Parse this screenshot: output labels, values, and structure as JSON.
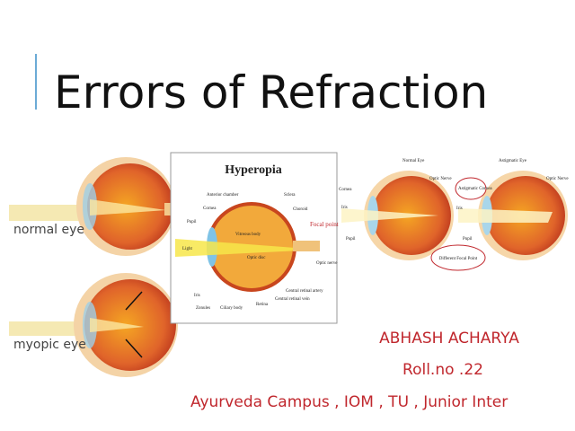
{
  "title": "Errors of Refraction",
  "figures": [
    {
      "caption": "normal eye"
    },
    {
      "caption": "myopic eye"
    }
  ],
  "hyperopia": {
    "title": "Hyperopia",
    "labels": [
      "Anterior chamber",
      "Cornea",
      "Pupil",
      "Light",
      "Iris",
      "Zonules",
      "Ciliary body",
      "Retina",
      "Sclera",
      "Choroid",
      "Vitreous body",
      "Focal point",
      "Optic disc",
      "Optic nerve",
      "Central retinal artery",
      "Central retinal vein"
    ]
  },
  "astigmatism": {
    "normal_title": "Normal Eye",
    "astigmatic_title": "Astigmatic Eye",
    "labels": [
      "Cornea",
      "Iris",
      "Pupil",
      "Optic Nerve",
      "Astigmatic Cornea",
      "Iris",
      "Pupil",
      "Optic Nerve",
      "Different Focal Point"
    ]
  },
  "author": {
    "name": "ABHASH ACHARYA",
    "roll": "Roll.no .22",
    "institution": "Ayurveda Campus , IOM , TU , Junior Inter"
  }
}
